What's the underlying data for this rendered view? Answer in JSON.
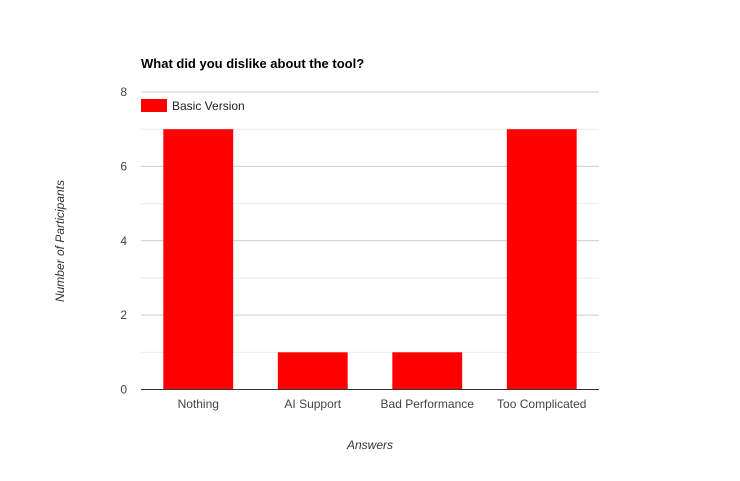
{
  "chart_data": {
    "type": "bar",
    "title": "What did you dislike about the tool?",
    "xlabel": "Answers",
    "ylabel": "Number of Participants",
    "categories": [
      "Nothing",
      "AI Support",
      "Bad Performance",
      "Too Complicated"
    ],
    "series": [
      {
        "name": "Basic Version",
        "values": [
          7,
          1,
          1,
          7
        ],
        "color": "#ff0000"
      }
    ],
    "ylim": [
      0,
      8
    ],
    "yticks": [
      "0",
      "2",
      "4",
      "6",
      "8"
    ],
    "grid": true,
    "legend_position": "top-left"
  }
}
